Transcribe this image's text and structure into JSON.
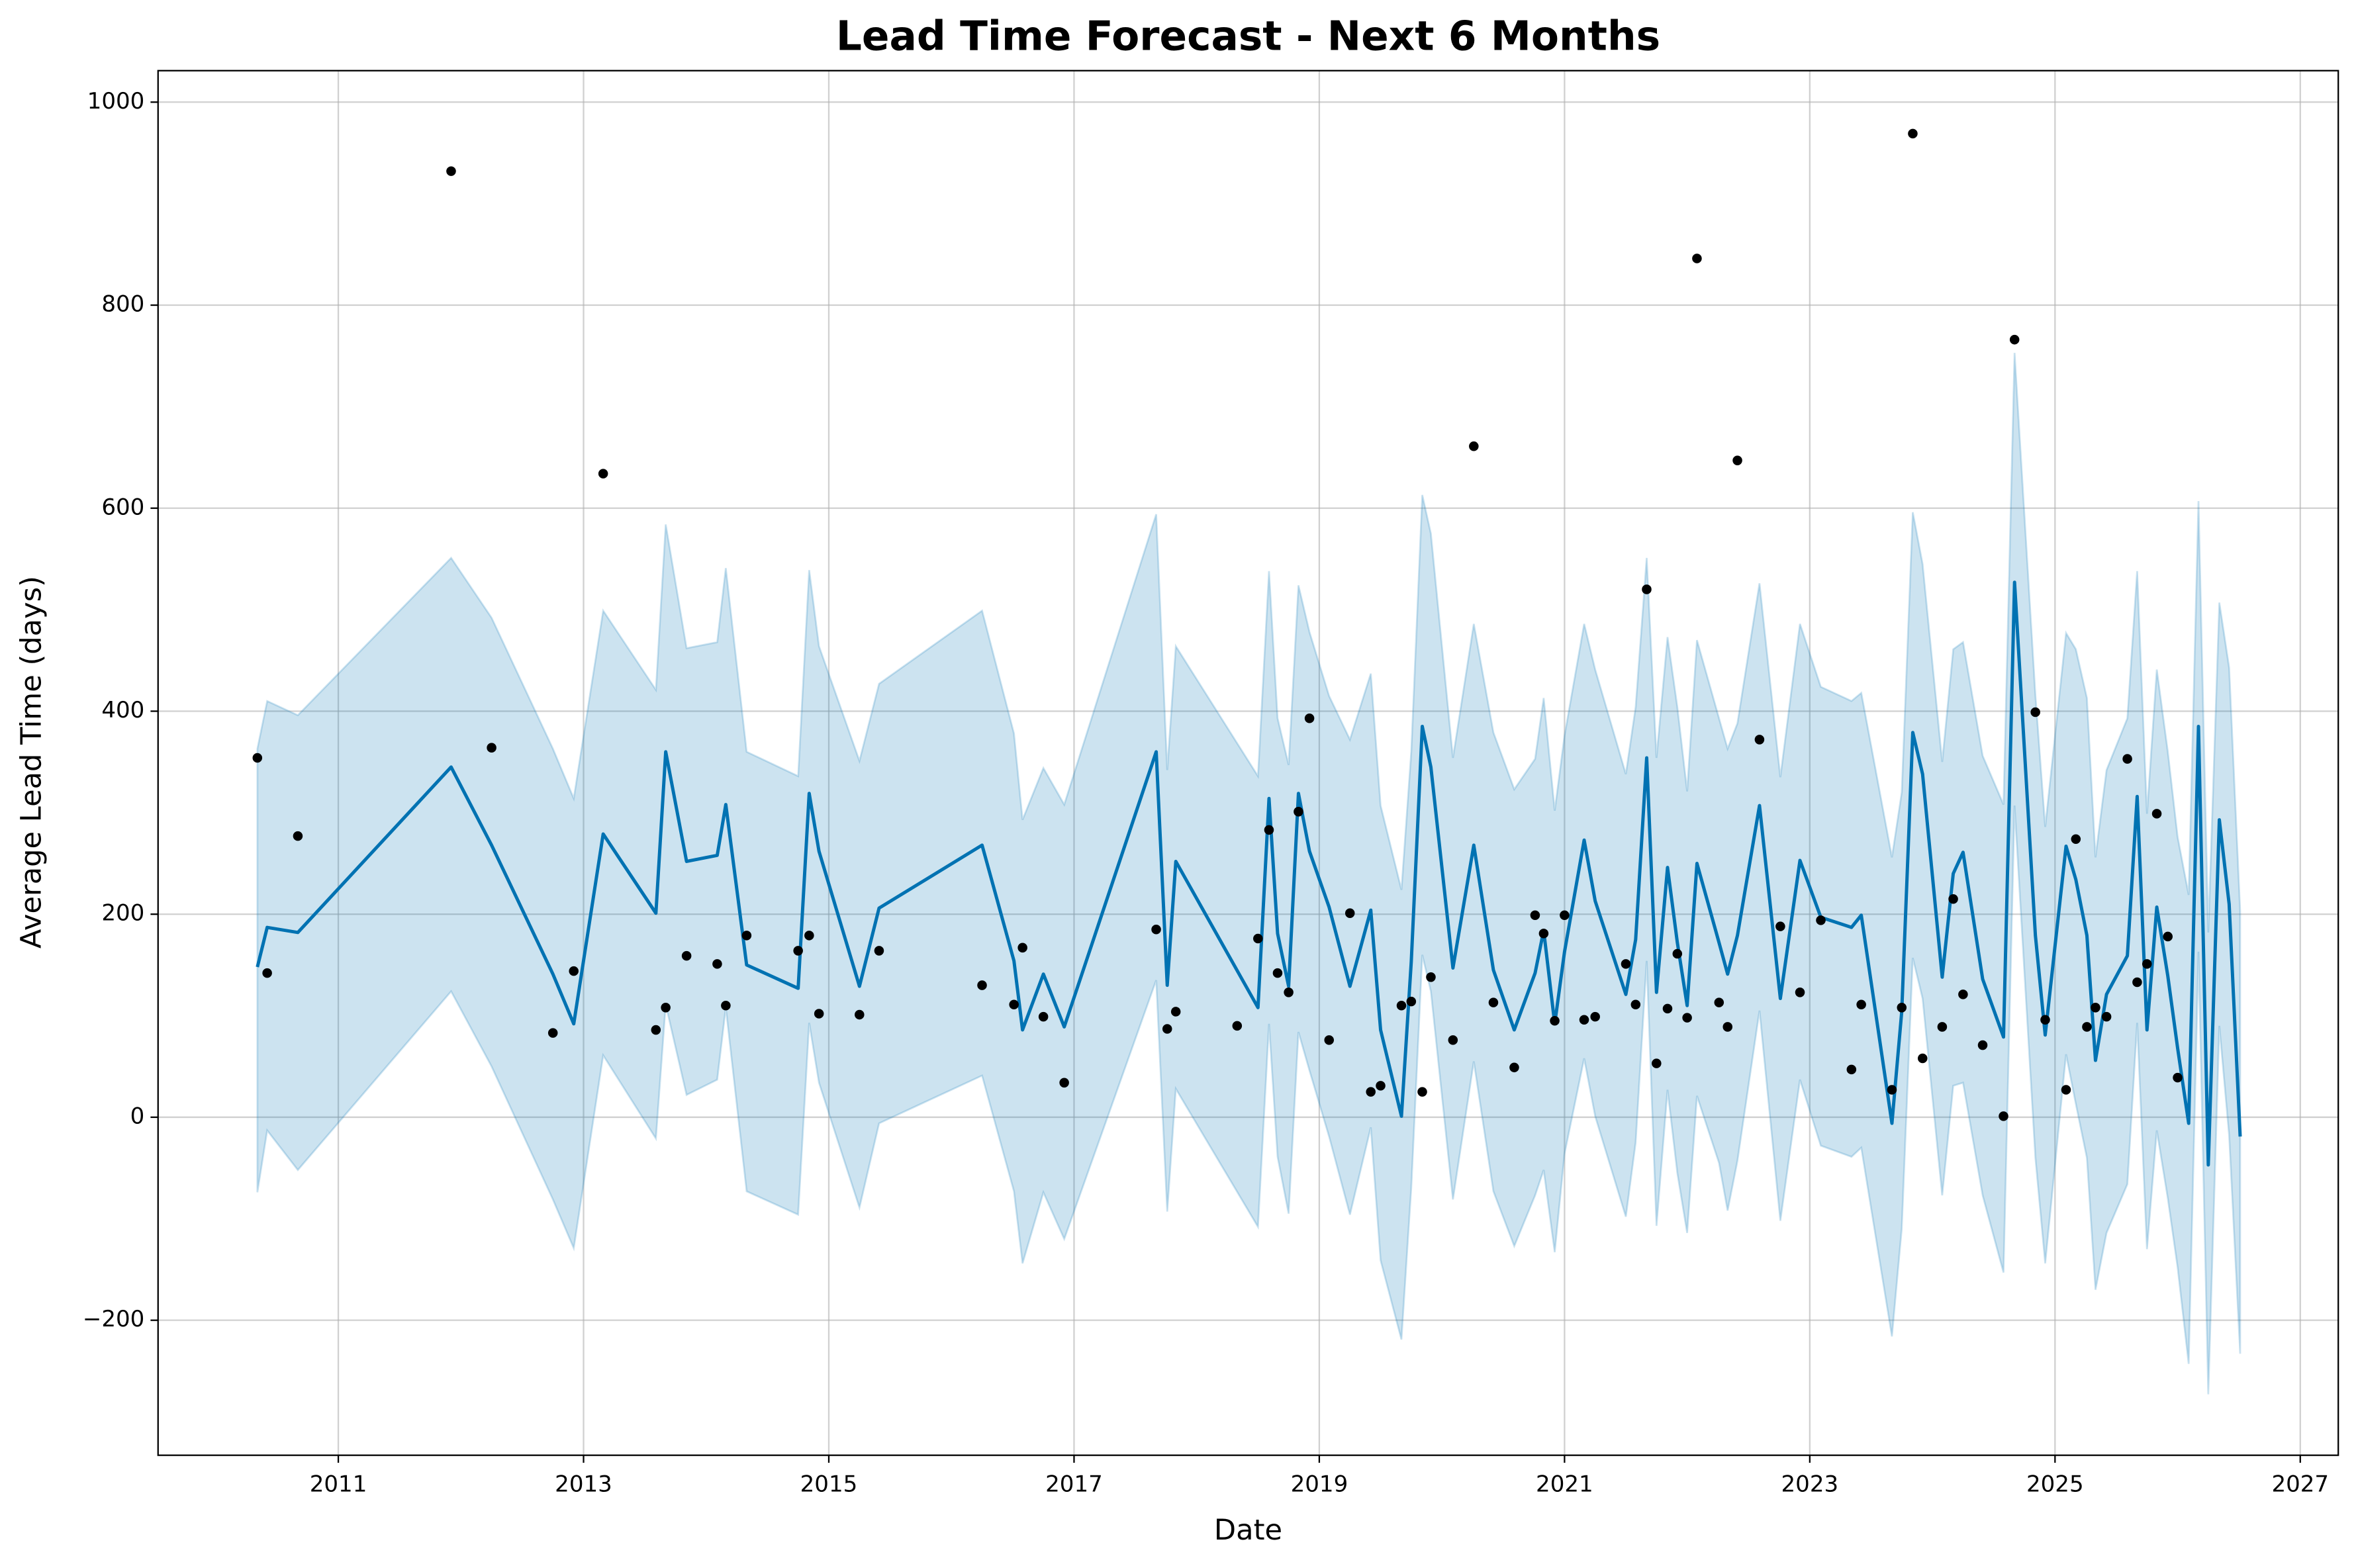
{
  "chart_data": {
    "type": "line",
    "title": "Lead Time Forecast - Next 6 Months",
    "x_label": "Date",
    "y_label": "Average Lead Time (days)",
    "xlim": [
      2009.53,
      2027.31
    ],
    "xticks": [
      2011,
      2013,
      2015,
      2017,
      2019,
      2021,
      2023,
      2025,
      2027
    ],
    "ylim": [
      -333,
      1031
    ],
    "yticks": [
      {
        "value": -200,
        "label": "−200"
      },
      0,
      200,
      400,
      600,
      800,
      1000
    ],
    "grid": true,
    "x": [
      2010.34,
      2010.42,
      2010.67,
      2011.92,
      2012.25,
      2012.75,
      2012.92,
      2013.16,
      2013.59,
      2013.67,
      2013.84,
      2014.09,
      2014.16,
      2014.33,
      2014.75,
      2014.84,
      2014.92,
      2015.25,
      2015.41,
      2016.25,
      2016.51,
      2016.58,
      2016.75,
      2016.92,
      2017.67,
      2017.76,
      2017.83,
      2018.5,
      2018.59,
      2018.66,
      2018.75,
      2018.83,
      2018.92,
      2019.08,
      2019.25,
      2019.42,
      2019.5,
      2019.67,
      2019.75,
      2019.84,
      2019.91,
      2020.09,
      2020.26,
      2020.42,
      2020.59,
      2020.76,
      2020.83,
      2020.92,
      2021.0,
      2021.16,
      2021.25,
      2021.5,
      2021.58,
      2021.67,
      2021.75,
      2021.84,
      2021.92,
      2022.0,
      2022.08,
      2022.26,
      2022.33,
      2022.41,
      2022.59,
      2022.76,
      2022.92,
      2023.09,
      2023.34,
      2023.42,
      2023.67,
      2023.75,
      2023.84,
      2023.92,
      2024.08,
      2024.17,
      2024.25,
      2024.41,
      2024.58,
      2024.67,
      2024.84,
      2024.92,
      2025.09,
      2025.17,
      2025.26,
      2025.33,
      2025.42,
      2025.59,
      2025.67,
      2025.75,
      2025.83,
      2025.92,
      2026.0,
      2026.09,
      2026.17,
      2026.25,
      2026.34,
      2026.42,
      2026.51
    ],
    "series": [
      {
        "color": "#0072b2",
        "band_color": "#0072b2",
        "values": [
          148,
          187,
          182,
          345,
          268,
          141,
          92,
          279,
          201,
          360,
          252,
          258,
          308,
          150,
          127,
          319,
          262,
          129,
          206,
          268,
          154,
          86,
          141,
          89,
          360,
          130,
          252,
          108,
          314,
          181,
          129,
          319,
          262,
          207,
          129,
          204,
          86,
          1,
          153,
          385,
          345,
          147,
          268,
          145,
          86,
          142,
          184,
          92,
          163,
          273,
          213,
          121,
          175,
          354,
          123,
          246,
          172,
          110,
          250,
          172,
          141,
          179,
          307,
          117,
          253,
          197,
          187,
          199,
          -6,
          104,
          379,
          338,
          138,
          240,
          261,
          136,
          79,
          527,
          179,
          81,
          267,
          234,
          179,
          56,
          121,
          159,
          316,
          86,
          207,
          139,
          68,
          -6,
          385,
          -47,
          293,
          210,
          -19
        ],
        "upper": [
          363,
          410,
          396,
          551,
          492,
          363,
          314,
          499,
          421,
          584,
          462,
          468,
          541,
          360,
          336,
          539,
          464,
          351,
          427,
          499,
          378,
          293,
          344,
          308,
          594,
          342,
          464,
          336,
          538,
          393,
          347,
          524,
          478,
          415,
          372,
          437,
          307,
          224,
          360,
          613,
          575,
          354,
          486,
          379,
          323,
          353,
          413,
          302,
          376,
          486,
          441,
          338,
          404,
          551,
          354,
          473,
          404,
          321,
          470,
          393,
          363,
          388,
          526,
          335,
          486,
          424,
          410,
          418,
          256,
          320,
          596,
          545,
          350,
          461,
          468,
          356,
          308,
          753,
          416,
          286,
          477,
          461,
          413,
          256,
          342,
          393,
          538,
          299,
          441,
          360,
          276,
          219,
          607,
          182,
          507,
          443,
          203
        ],
        "lower": [
          -74,
          -13,
          -52,
          124,
          50,
          -81,
          -129,
          61,
          -21,
          111,
          22,
          37,
          108,
          -73,
          -96,
          93,
          34,
          -89,
          -6,
          41,
          -73,
          -144,
          -74,
          -120,
          135,
          -93,
          28,
          -108,
          92,
          -39,
          -95,
          84,
          46,
          -19,
          -96,
          -10,
          -141,
          -219,
          -70,
          160,
          124,
          -81,
          55,
          -73,
          -127,
          -77,
          -52,
          -133,
          -36,
          58,
          1,
          -98,
          -25,
          154,
          -107,
          27,
          -55,
          -114,
          21,
          -45,
          -92,
          -43,
          105,
          -102,
          37,
          -28,
          -39,
          -30,
          -216,
          -110,
          157,
          117,
          -77,
          31,
          34,
          -77,
          -153,
          307,
          -40,
          -144,
          62,
          13,
          -40,
          -170,
          -114,
          -66,
          93,
          -130,
          -13,
          -80,
          -148,
          -243,
          163,
          -273,
          90,
          -18,
          -233
        ]
      }
    ],
    "points": {
      "color": "#000000",
      "x": [
        2010.34,
        2010.42,
        2010.67,
        2011.92,
        2012.25,
        2012.75,
        2012.92,
        2013.16,
        2013.59,
        2013.67,
        2013.84,
        2014.09,
        2014.16,
        2014.33,
        2014.75,
        2014.84,
        2014.92,
        2015.25,
        2015.41,
        2016.25,
        2016.51,
        2016.58,
        2016.75,
        2016.92,
        2017.67,
        2017.76,
        2017.83,
        2018.33,
        2018.5,
        2018.59,
        2018.66,
        2018.75,
        2018.83,
        2018.92,
        2019.08,
        2019.25,
        2019.42,
        2019.5,
        2019.67,
        2019.75,
        2019.84,
        2019.91,
        2020.09,
        2020.26,
        2020.42,
        2020.59,
        2020.76,
        2020.83,
        2020.92,
        2021.0,
        2021.16,
        2021.25,
        2021.5,
        2021.58,
        2021.67,
        2021.75,
        2021.84,
        2021.92,
        2022.0,
        2022.08,
        2022.26,
        2022.33,
        2022.41,
        2022.59,
        2022.76,
        2022.92,
        2023.09,
        2023.34,
        2023.42,
        2023.67,
        2023.75,
        2023.84,
        2023.92,
        2024.08,
        2024.17,
        2024.25,
        2024.41,
        2024.58,
        2024.67,
        2024.84,
        2024.92,
        2025.09,
        2025.17,
        2025.26,
        2025.33,
        2025.42,
        2025.59,
        2025.67,
        2025.75,
        2025.83,
        2025.92,
        2026.0
      ],
      "values": [
        354,
        142,
        277,
        932,
        364,
        83,
        144,
        634,
        86,
        108,
        159,
        151,
        110,
        179,
        164,
        179,
        102,
        101,
        164,
        130,
        111,
        167,
        99,
        34,
        185,
        87,
        104,
        90,
        176,
        283,
        142,
        123,
        301,
        393,
        76,
        201,
        25,
        31,
        110,
        114,
        25,
        138,
        76,
        661,
        113,
        49,
        199,
        181,
        95,
        199,
        96,
        99,
        151,
        111,
        520,
        53,
        107,
        161,
        98,
        846,
        113,
        89,
        647,
        372,
        188,
        123,
        194,
        47,
        111,
        27,
        108,
        969,
        58,
        89,
        215,
        121,
        71,
        1,
        766,
        399,
        96,
        27,
        274,
        89,
        108,
        99,
        353,
        133,
        151,
        299,
        178,
        39
      ]
    }
  }
}
